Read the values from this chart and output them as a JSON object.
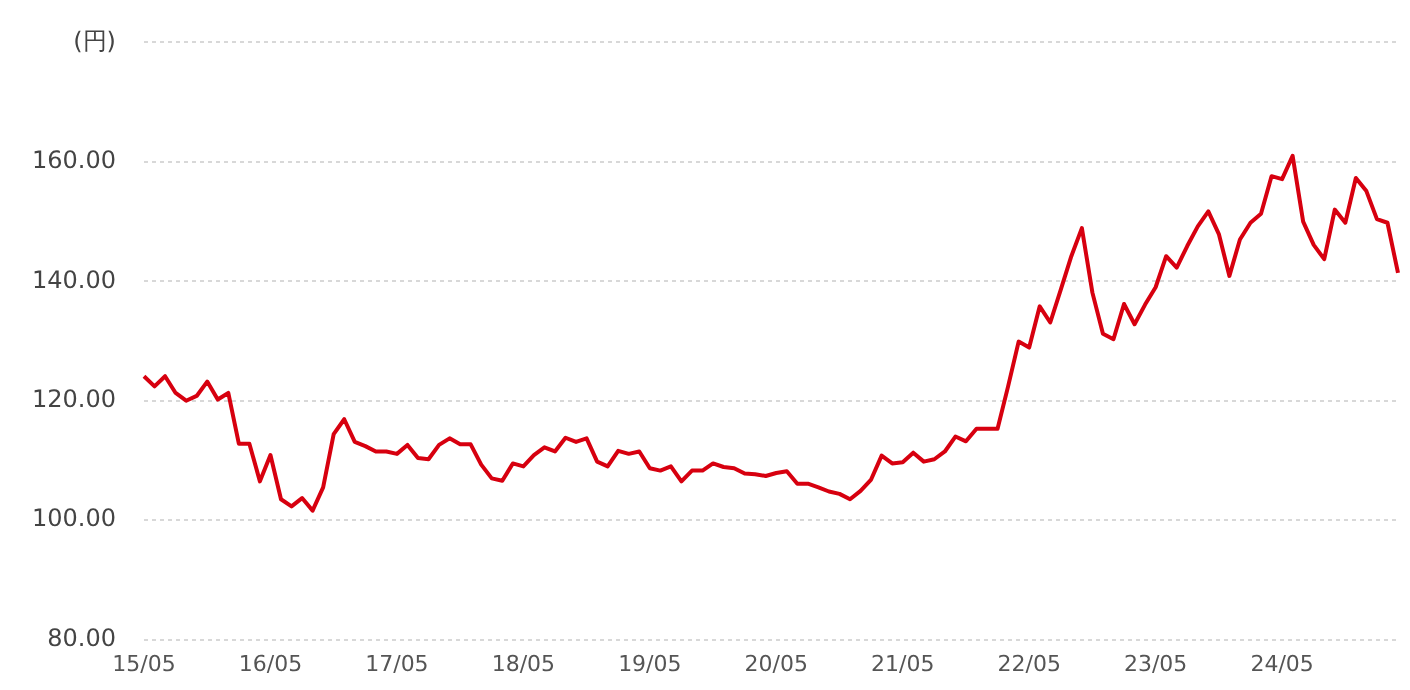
{
  "chart_data": {
    "type": "line",
    "categories": [
      "15/05",
      null,
      null,
      null,
      null,
      null,
      null,
      null,
      null,
      null,
      null,
      null,
      "16/05",
      null,
      null,
      null,
      null,
      null,
      null,
      null,
      null,
      null,
      null,
      null,
      "17/05",
      null,
      null,
      null,
      null,
      null,
      null,
      null,
      null,
      null,
      null,
      null,
      "18/05",
      null,
      null,
      null,
      null,
      null,
      null,
      null,
      null,
      null,
      null,
      null,
      "19/05",
      null,
      null,
      null,
      null,
      null,
      null,
      null,
      null,
      null,
      null,
      null,
      "20/05",
      null,
      null,
      null,
      null,
      null,
      null,
      null,
      null,
      null,
      null,
      null,
      "21/05",
      null,
      null,
      null,
      null,
      null,
      null,
      null,
      null,
      null,
      null,
      null,
      "22/05",
      null,
      null,
      null,
      null,
      null,
      null,
      null,
      null,
      null,
      null,
      null,
      "23/05",
      null,
      null,
      null,
      null,
      null,
      null,
      null,
      null,
      null,
      null,
      null,
      "24/05",
      null,
      null,
      null,
      null,
      null,
      null,
      null,
      null,
      null,
      null,
      null
    ],
    "series": [
      {
        "color": "#d7000f",
        "values": [
          124.1,
          122.4,
          124.1,
          121.3,
          120.0,
          120.8,
          123.2,
          120.2,
          121.3,
          112.8,
          112.8,
          106.5,
          110.9,
          103.5,
          102.3,
          103.7,
          101.6,
          105.5,
          114.4,
          116.9,
          113.1,
          112.4,
          111.5,
          111.5,
          111.1,
          112.6,
          110.4,
          110.2,
          112.6,
          113.7,
          112.7,
          112.7,
          109.3,
          107.0,
          106.6,
          109.5,
          109.0,
          110.9,
          112.2,
          111.5,
          113.8,
          113.1,
          113.7,
          109.8,
          109.0,
          111.6,
          111.1,
          111.5,
          108.7,
          108.3,
          109.0,
          106.5,
          108.3,
          108.3,
          109.5,
          108.9,
          108.7,
          107.8,
          107.7,
          107.4,
          107.9,
          108.2,
          106.1,
          106.1,
          105.5,
          104.8,
          104.4,
          103.5,
          104.9,
          106.8,
          110.8,
          109.5,
          109.7,
          111.3,
          109.8,
          110.2,
          111.5,
          114.0,
          113.2,
          115.3,
          115.3,
          115.3,
          122.4,
          129.9,
          128.9,
          135.8,
          133.1,
          138.6,
          144.2,
          148.9,
          138.1,
          131.2,
          130.3,
          136.2,
          132.8,
          136.1,
          139.0,
          144.2,
          142.3,
          145.9,
          149.2,
          151.7,
          147.9,
          140.9,
          147.0,
          149.8,
          151.3,
          157.6,
          157.1,
          161.0,
          150.0,
          146.1,
          143.7,
          152.0,
          149.8,
          157.3,
          155.1,
          150.4,
          149.8,
          141.4
        ]
      }
    ],
    "ylim": [
      80,
      180
    ],
    "yticks": [
      {
        "value": 80,
        "label": "80.00"
      },
      {
        "value": 100,
        "label": "100.00"
      },
      {
        "value": 120,
        "label": "120.00"
      },
      {
        "value": 140,
        "label": "140.00"
      },
      {
        "value": 160,
        "label": "160.00"
      },
      {
        "value": 180,
        "label": "(円)"
      }
    ],
    "grid": "y",
    "legend": false,
    "marker": "none",
    "line_style": "solid"
  }
}
